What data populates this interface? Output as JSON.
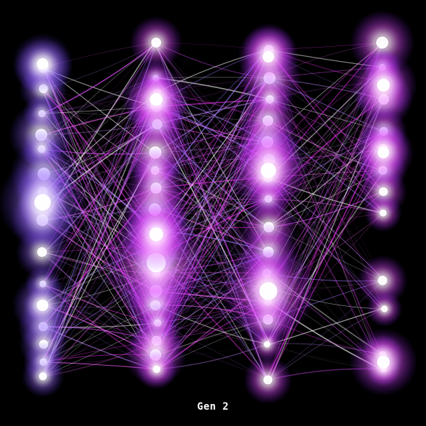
{
  "generation_label": "Gen 2",
  "colors": {
    "background": "#000000",
    "edge_magenta": "#ff33ff",
    "edge_violet": "#9f7bff",
    "node_glow": "#c070ff",
    "node_core": "#ffffff",
    "label": "#ffffff"
  }
}
